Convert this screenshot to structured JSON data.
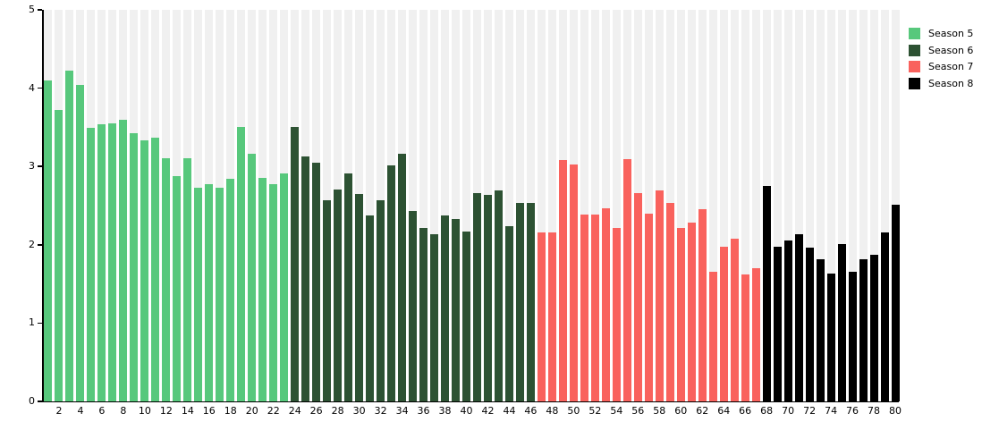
{
  "chart_data": {
    "type": "bar",
    "title": "",
    "xlabel": "",
    "ylabel": "",
    "ylim": [
      0,
      5
    ],
    "y_ticks": [
      0,
      1,
      2,
      3,
      4,
      5
    ],
    "x_ticks": [
      2,
      4,
      6,
      8,
      10,
      12,
      14,
      16,
      18,
      20,
      22,
      24,
      26,
      28,
      30,
      32,
      34,
      36,
      38,
      40,
      42,
      44,
      46,
      48,
      50,
      52,
      54,
      56,
      58,
      60,
      62,
      64,
      66,
      68,
      70,
      72,
      74,
      76,
      78,
      80
    ],
    "episode_count": 80,
    "grid": false,
    "background_bars": {
      "value": 5,
      "color": "#f0f0f0"
    },
    "axis_color": "#000000",
    "legend": {
      "position": "top-right"
    },
    "series": [
      {
        "name": "Season 5",
        "color": "#57c87c",
        "episode_start": 1,
        "episode_end": 23,
        "values": [
          4.1,
          3.72,
          4.22,
          4.04,
          3.49,
          3.54,
          3.55,
          3.6,
          3.42,
          3.33,
          3.37,
          3.11,
          2.88,
          3.1,
          2.73,
          2.77,
          2.73,
          2.84,
          3.5,
          3.16,
          2.85,
          2.77,
          2.91
        ]
      },
      {
        "name": "Season 6",
        "color": "#2d5233",
        "episode_start": 24,
        "episode_end": 46,
        "values": [
          3.5,
          3.13,
          3.05,
          2.57,
          2.7,
          2.91,
          2.65,
          2.38,
          2.57,
          3.01,
          3.16,
          2.43,
          2.22,
          2.14,
          2.38,
          2.33,
          2.17,
          2.66,
          2.64,
          2.69,
          2.24,
          2.53,
          2.53
        ]
      },
      {
        "name": "Season 7",
        "color": "#f9625d",
        "episode_start": 47,
        "episode_end": 67,
        "values": [
          2.16,
          2.16,
          3.08,
          3.02,
          2.39,
          2.39,
          2.47,
          2.22,
          3.09,
          2.66,
          2.4,
          2.69,
          2.54,
          2.22,
          2.28,
          2.45,
          1.66,
          1.98,
          2.08,
          1.62,
          1.7
        ]
      },
      {
        "name": "Season 8",
        "color": "#000000",
        "episode_start": 68,
        "episode_end": 80,
        "values": [
          2.75,
          1.98,
          2.05,
          2.13,
          1.96,
          1.82,
          1.63,
          2.01,
          1.65,
          1.81,
          1.87,
          2.16,
          2.51
        ]
      }
    ]
  }
}
